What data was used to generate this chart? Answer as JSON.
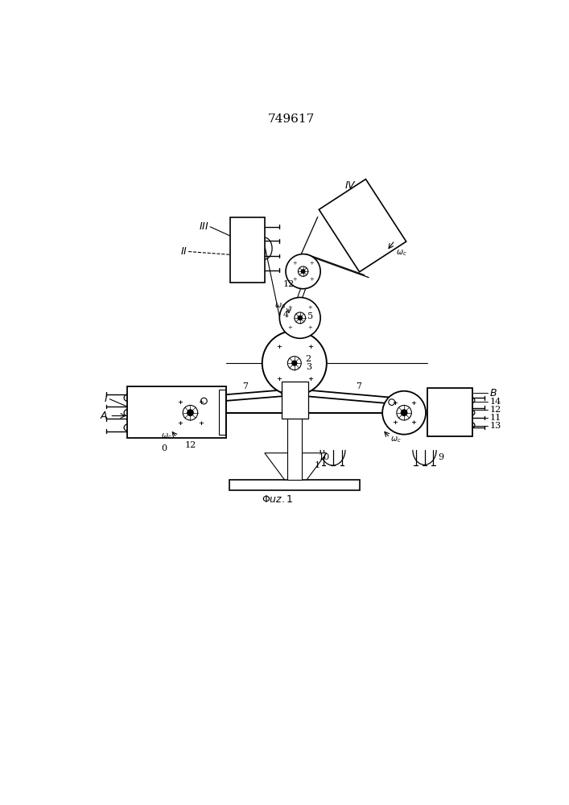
{
  "title": "749617",
  "bg_color": "#ffffff",
  "line_color": "#000000",
  "lw_thin": 0.8,
  "lw_med": 1.2,
  "lw_thick": 1.6
}
